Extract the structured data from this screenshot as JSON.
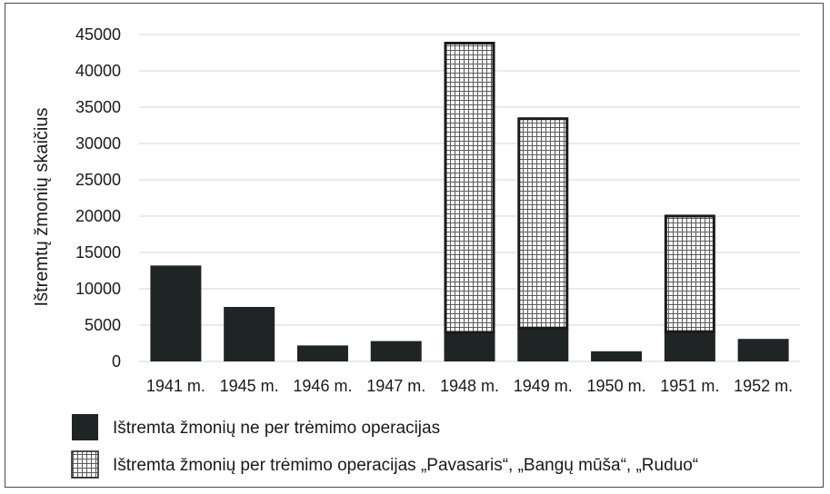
{
  "chart_data": {
    "type": "bar",
    "stacked": true,
    "categories": [
      "1941 m.",
      "1945 m.",
      "1946 m.",
      "1947 m.",
      "1948 m.",
      "1949 m.",
      "1950 m.",
      "1951 m.",
      "1952 m."
    ],
    "series": [
      {
        "name": "Ištremta žmonių ne per trėmimo operacijas",
        "values": [
          13200,
          7500,
          2200,
          2800,
          4000,
          4600,
          1400,
          4100,
          3100
        ],
        "color": "#1f2525",
        "pattern": "solid"
      },
      {
        "name": "Ištremta žmonių per trėmimo operacijas „Pavasaris“, „Bangų mūša“, „Ruduo“",
        "values": [
          0,
          0,
          0,
          0,
          40000,
          29000,
          0,
          16100,
          0
        ],
        "color": "#ffffff",
        "pattern": "grid"
      }
    ],
    "ylabel": "Ištremtų žmonių skaičius",
    "xlabel": "",
    "ylim": [
      0,
      45000
    ],
    "yticks": [
      0,
      5000,
      10000,
      15000,
      20000,
      25000,
      30000,
      35000,
      40000,
      45000
    ],
    "grid": true,
    "legend_position": "bottom"
  }
}
